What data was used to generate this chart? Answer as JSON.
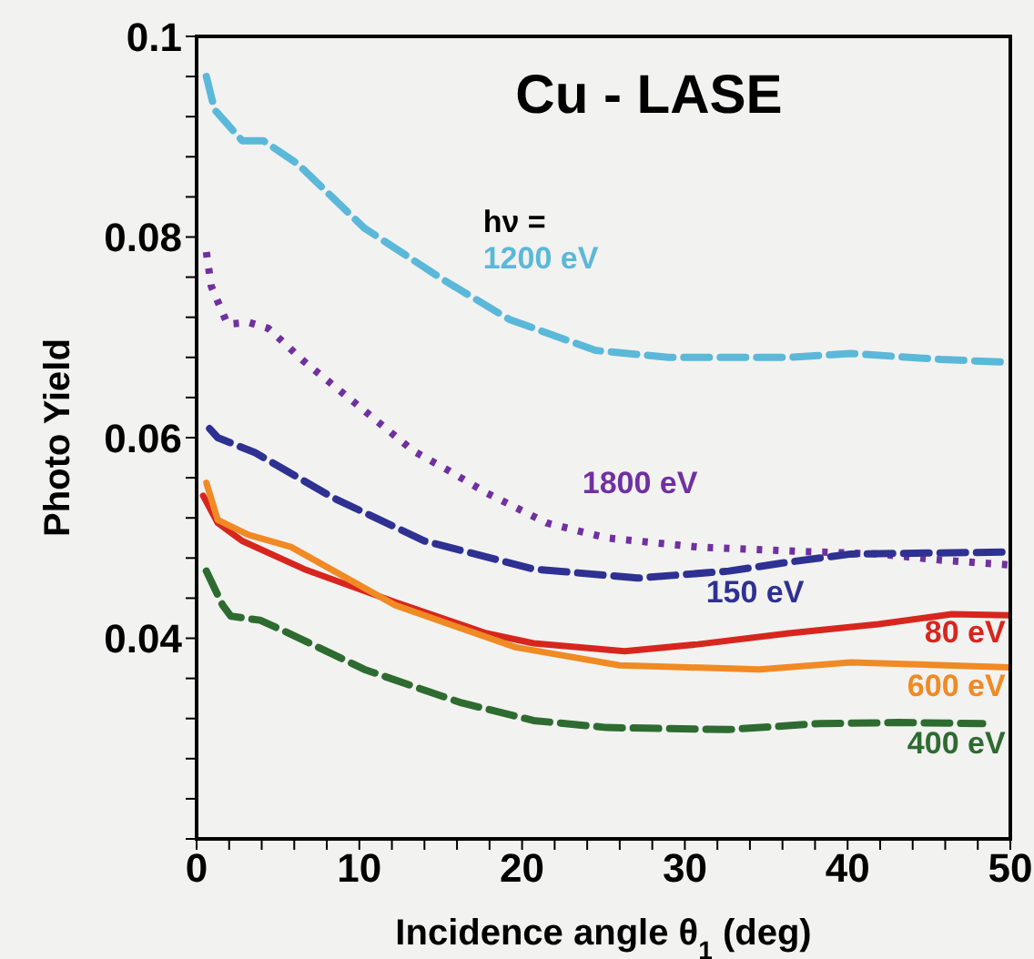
{
  "chart_data": {
    "type": "line",
    "title": "Cu - LASE",
    "xlabel": "Incidence angle θ$_{1}$ (deg)",
    "ylabel": "Photo Yield",
    "annotations": [
      "hν ="
    ],
    "xlim": [
      0,
      50
    ],
    "xticks": [
      0,
      {
        "value": 2,
        "label": null
      },
      {
        "value": 4,
        "label": null
      },
      {
        "value": 6,
        "label": null
      },
      {
        "value": 8,
        "label": null
      },
      10,
      {
        "value": 12,
        "label": null
      },
      {
        "value": 14,
        "label": null
      },
      {
        "value": 16,
        "label": null
      },
      {
        "value": 18,
        "label": null
      },
      20,
      {
        "value": 22,
        "label": null
      },
      {
        "value": 24,
        "label": null
      },
      {
        "value": 26,
        "label": null
      },
      {
        "value": 28,
        "label": null
      },
      30,
      {
        "value": 32,
        "label": null
      },
      {
        "value": 34,
        "label": null
      },
      {
        "value": 36,
        "label": null
      },
      {
        "value": 38,
        "label": null
      },
      40,
      {
        "value": 42,
        "label": null
      },
      {
        "value": 44,
        "label": null
      },
      {
        "value": 46,
        "label": null
      },
      {
        "value": 48,
        "label": null
      },
      50
    ],
    "ylim": [
      0.02,
      0.1
    ],
    "yticks": [
      {
        "value": 0.02,
        "label": null
      },
      {
        "value": 0.024,
        "label": null
      },
      {
        "value": 0.028,
        "label": null
      },
      {
        "value": 0.032,
        "label": null
      },
      {
        "value": 0.036,
        "label": null
      },
      0.04,
      {
        "value": 0.044,
        "label": null
      },
      {
        "value": 0.048,
        "label": null
      },
      {
        "value": 0.052,
        "label": null
      },
      {
        "value": 0.056,
        "label": null
      },
      0.06,
      {
        "value": 0.064,
        "label": null
      },
      {
        "value": 0.068,
        "label": null
      },
      {
        "value": 0.072,
        "label": null
      },
      {
        "value": 0.076,
        "label": null
      },
      0.08,
      {
        "value": 0.084,
        "label": null
      },
      {
        "value": 0.088,
        "label": null
      },
      {
        "value": 0.092,
        "label": null
      },
      {
        "value": 0.096,
        "label": null
      },
      0.1
    ],
    "marker": "none",
    "series": [
      {
        "name": "1200 eV",
        "color": "#5bb8d9",
        "line_style": "dashed",
        "x": [
          0.6,
          1.1,
          2.8,
          4.1,
          6.2,
          10.3,
          15.1,
          19.2,
          24.5,
          29,
          36.4,
          40.2,
          45.7,
          50
        ],
        "values": [
          0.096,
          0.0927,
          0.0896,
          0.0896,
          0.0873,
          0.0809,
          0.0758,
          0.0718,
          0.0687,
          0.068,
          0.068,
          0.0684,
          0.0678,
          0.0675
        ]
      },
      {
        "name": "1800 eV",
        "color": "#7030a0",
        "line_style": "dotted",
        "x": [
          0.6,
          0.9,
          1.9,
          3.2,
          4.4,
          6.6,
          10,
          13.3,
          15.5,
          17.8,
          21.5,
          25.2,
          30.8,
          36.4,
          41.9,
          45.7,
          50
        ],
        "values": [
          0.0785,
          0.0751,
          0.0713,
          0.0715,
          0.0709,
          0.0676,
          0.0631,
          0.0587,
          0.0567,
          0.0545,
          0.0515,
          0.05,
          0.0491,
          0.0487,
          0.0484,
          0.0478,
          0.0473
        ]
      },
      {
        "name": "150 eV",
        "color": "#2e3192",
        "line_style": "dashed",
        "x": [
          0.8,
          1.3,
          3.6,
          8.4,
          14,
          20.7,
          27.1,
          32.7,
          36.4,
          40.2,
          50
        ],
        "values": [
          0.0609,
          0.06,
          0.0585,
          0.054,
          0.0497,
          0.0469,
          0.046,
          0.0467,
          0.0476,
          0.0484,
          0.0486
        ]
      },
      {
        "name": "80 eV",
        "color": "#d7261e",
        "line_style": "solid",
        "x": [
          0.4,
          1.3,
          2.8,
          6.6,
          12.2,
          17.8,
          20.7,
          26.3,
          30.8,
          36.4,
          41.9,
          46.4,
          50
        ],
        "values": [
          0.0542,
          0.0515,
          0.0497,
          0.0469,
          0.0436,
          0.0405,
          0.0395,
          0.0387,
          0.0394,
          0.0405,
          0.0414,
          0.0424,
          0.0423
        ]
      },
      {
        "name": "600 eV",
        "color": "#f08a24",
        "line_style": "solid",
        "x": [
          0.6,
          1.3,
          3.2,
          5.8,
          12.2,
          19.6,
          26,
          34.6,
          40.2,
          50
        ],
        "values": [
          0.0555,
          0.0518,
          0.0503,
          0.0491,
          0.0433,
          0.0391,
          0.0373,
          0.0369,
          0.0376,
          0.0371
        ]
      },
      {
        "name": "400 eV",
        "color": "#2e6b30",
        "line_style": "dashed",
        "x": [
          0.6,
          1.6,
          2.1,
          3.9,
          5.8,
          10.3,
          16.2,
          20.7,
          25.2,
          32.7,
          38.3,
          43.1,
          48.3
        ],
        "values": [
          0.0467,
          0.0433,
          0.0422,
          0.0418,
          0.0404,
          0.0369,
          0.0336,
          0.0318,
          0.0311,
          0.0309,
          0.0315,
          0.0316,
          0.0315
        ]
      }
    ]
  }
}
